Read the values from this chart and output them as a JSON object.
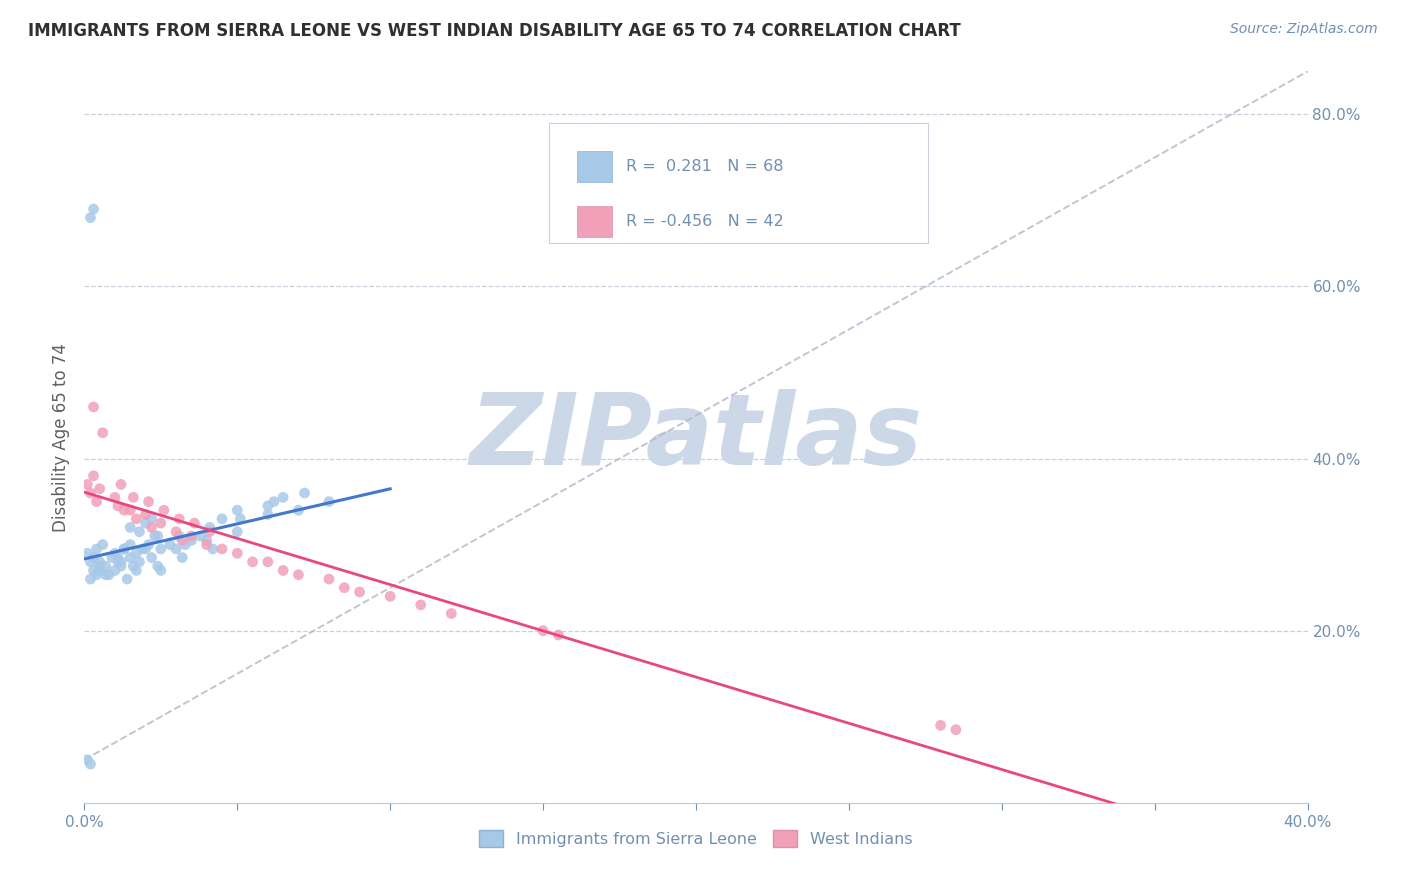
{
  "title": "IMMIGRANTS FROM SIERRA LEONE VS WEST INDIAN DISABILITY AGE 65 TO 74 CORRELATION CHART",
  "source": "Source: ZipAtlas.com",
  "ylabel": "Disability Age 65 to 74",
  "xlim": [
    0.0,
    0.4
  ],
  "ylim": [
    0.0,
    0.85
  ],
  "legend_labels": [
    "Immigrants from Sierra Leone",
    "West Indians"
  ],
  "sierra_leone_color": "#a8c8e8",
  "west_indian_color": "#f0a0b8",
  "sierra_leone_line_color": "#4477cc",
  "west_indian_line_color": "#e84880",
  "ref_line_color": "#b0b8c8",
  "sierra_leone_R": 0.281,
  "sierra_leone_N": 68,
  "west_indian_R": -0.456,
  "west_indian_N": 42,
  "watermark_text": "ZIPatlas",
  "watermark_color": "#ccd8e8",
  "title_color": "#303030",
  "axis_label_color": "#606060",
  "tick_color": "#7090b0",
  "grid_color": "#c8d0dc",
  "background_color": "#ffffff",
  "sl_x": [
    0.001,
    0.002,
    0.003,
    0.004,
    0.005,
    0.006,
    0.007,
    0.008,
    0.01,
    0.011,
    0.012,
    0.013,
    0.014,
    0.015,
    0.016,
    0.017,
    0.018,
    0.02,
    0.021,
    0.022,
    0.023,
    0.024,
    0.025,
    0.03,
    0.031,
    0.032,
    0.033,
    0.04,
    0.041,
    0.042,
    0.05,
    0.051,
    0.06,
    0.062,
    0.07,
    0.072,
    0.08,
    0.015,
    0.018,
    0.02,
    0.022,
    0.024,
    0.005,
    0.007,
    0.009,
    0.011,
    0.013,
    0.002,
    0.003,
    0.004,
    0.005,
    0.035,
    0.038,
    0.045,
    0.05,
    0.025,
    0.028,
    0.06,
    0.065,
    0.01,
    0.012,
    0.015,
    0.017,
    0.019,
    0.002,
    0.003,
    0.001,
    0.002
  ],
  "sl_y": [
    0.29,
    0.28,
    0.285,
    0.295,
    0.27,
    0.3,
    0.275,
    0.265,
    0.29,
    0.285,
    0.28,
    0.295,
    0.26,
    0.3,
    0.275,
    0.27,
    0.28,
    0.295,
    0.3,
    0.285,
    0.31,
    0.275,
    0.27,
    0.295,
    0.31,
    0.285,
    0.3,
    0.305,
    0.32,
    0.295,
    0.315,
    0.33,
    0.335,
    0.35,
    0.34,
    0.36,
    0.35,
    0.32,
    0.315,
    0.325,
    0.33,
    0.31,
    0.275,
    0.265,
    0.285,
    0.28,
    0.295,
    0.26,
    0.27,
    0.265,
    0.28,
    0.305,
    0.31,
    0.33,
    0.34,
    0.295,
    0.3,
    0.345,
    0.355,
    0.27,
    0.275,
    0.285,
    0.29,
    0.295,
    0.68,
    0.69,
    0.05,
    0.045
  ],
  "wi_x": [
    0.001,
    0.002,
    0.003,
    0.004,
    0.005,
    0.01,
    0.011,
    0.012,
    0.013,
    0.015,
    0.016,
    0.017,
    0.02,
    0.021,
    0.022,
    0.025,
    0.026,
    0.03,
    0.031,
    0.032,
    0.035,
    0.036,
    0.04,
    0.041,
    0.045,
    0.05,
    0.055,
    0.06,
    0.065,
    0.07,
    0.08,
    0.085,
    0.09,
    0.1,
    0.11,
    0.12,
    0.15,
    0.155,
    0.28,
    0.285,
    0.003,
    0.006
  ],
  "wi_y": [
    0.37,
    0.36,
    0.38,
    0.35,
    0.365,
    0.355,
    0.345,
    0.37,
    0.34,
    0.34,
    0.355,
    0.33,
    0.335,
    0.35,
    0.32,
    0.325,
    0.34,
    0.315,
    0.33,
    0.305,
    0.31,
    0.325,
    0.3,
    0.315,
    0.295,
    0.29,
    0.28,
    0.28,
    0.27,
    0.265,
    0.26,
    0.25,
    0.245,
    0.24,
    0.23,
    0.22,
    0.2,
    0.195,
    0.09,
    0.085,
    0.46,
    0.43
  ]
}
